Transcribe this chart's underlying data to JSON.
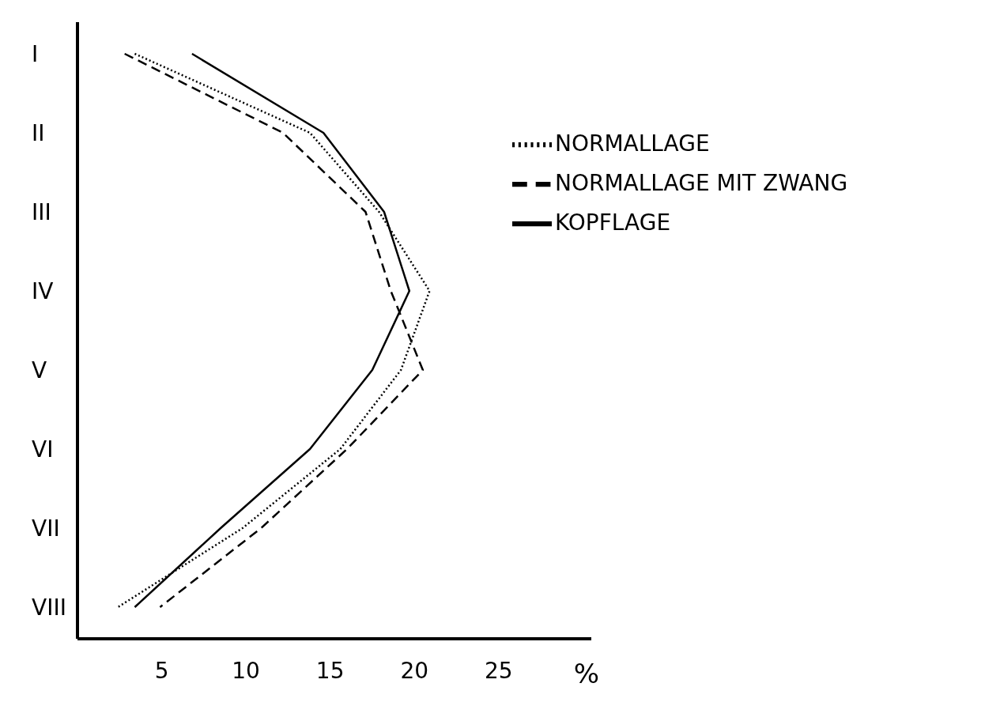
{
  "chart_data": {
    "type": "line",
    "orientation": "horizontal",
    "xlabel": "%",
    "categories": [
      "I",
      "II",
      "III",
      "IV",
      "V",
      "VI",
      "VII",
      "VIII"
    ],
    "xlim": [
      0,
      30.5
    ],
    "xticks": [
      5,
      10,
      15,
      20,
      25
    ],
    "grid": false,
    "legend": "right",
    "series": [
      {
        "name": "NORMALLAGE",
        "color": "#000000",
        "line_style": "dotted",
        "values": [
          3.4,
          13.8,
          17.9,
          20.9,
          19.2,
          15.6,
          9.8,
          2.4
        ]
      },
      {
        "name": "NORMALLAGE MIT ZWANG",
        "color": "#000000",
        "line_style": "dashed",
        "values": [
          2.8,
          12.2,
          17.1,
          18.6,
          20.5,
          16.0,
          10.9,
          4.9
        ]
      },
      {
        "name": "KOPFLAGE",
        "color": "#000000",
        "line_style": "solid",
        "values": [
          6.8,
          14.6,
          18.2,
          19.7,
          17.5,
          13.8,
          8.5,
          3.4
        ]
      }
    ]
  }
}
